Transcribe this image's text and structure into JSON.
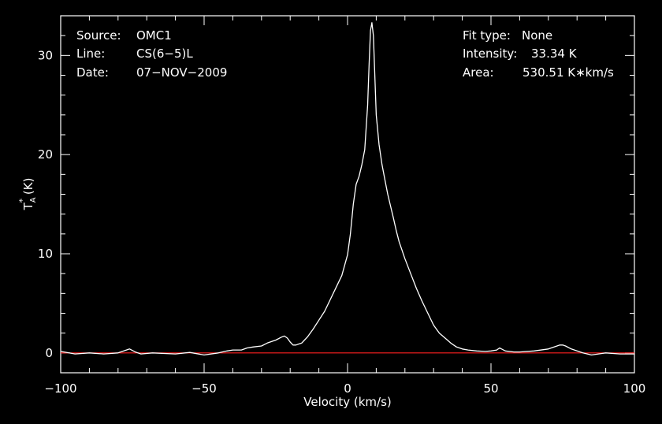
{
  "header_left": {
    "source_label": "Source:",
    "source_value": "OMC1",
    "line_label": "Line:",
    "line_value": "CS(6−5)L",
    "date_label": "Date:",
    "date_value": "07−NOV−2009"
  },
  "header_right": {
    "fit_label": "Fit type:",
    "fit_value": "None",
    "intensity_label": "Intensity:",
    "intensity_value": "33.34 K",
    "area_label": "Area:",
    "area_value": "530.51 K∗km/s"
  },
  "chart_data": {
    "type": "line",
    "xlabel": "Velocity (km/s)",
    "ylabel_main": "T",
    "ylabel_sub": "A",
    "ylabel_sup": "*",
    "ylabel_unit": " (K)",
    "xlim": [
      -100,
      100
    ],
    "ylim": [
      -2,
      34
    ],
    "x_ticks": [
      -100,
      -50,
      0,
      50,
      100
    ],
    "x_tick_labels": [
      "−100",
      "−50",
      "0",
      "50",
      "100"
    ],
    "y_ticks": [
      0,
      10,
      20,
      30
    ],
    "y_tick_labels": [
      "0",
      "10",
      "20",
      "30"
    ],
    "baseline": 0,
    "colors": {
      "spectrum": "#ffffff",
      "baseline": "#ff2020",
      "axes": "#ffffff",
      "background": "#000000"
    },
    "series": [
      {
        "x": [
          -100,
          -95,
          -90,
          -85,
          -80,
          -76,
          -74,
          -72,
          -68,
          -60,
          -55,
          -50,
          -45,
          -42,
          -40,
          -37,
          -35,
          -33,
          -30,
          -28,
          -25,
          -23,
          -22,
          -21,
          -20,
          -19,
          -18,
          -17,
          -16,
          -15,
          -14,
          -12,
          -10,
          -8,
          -6,
          -4,
          -2,
          0,
          1,
          2,
          3,
          4,
          5,
          6,
          7,
          7.5,
          8,
          8.5,
          9,
          9.5,
          10,
          11,
          12,
          13,
          14,
          15,
          16,
          17,
          18,
          20,
          22,
          24,
          26,
          28,
          30,
          32,
          34,
          36,
          38,
          40,
          42,
          45,
          48,
          50,
          52,
          53,
          55,
          58,
          60,
          65,
          70,
          72,
          74,
          75,
          76,
          78,
          80,
          82,
          85,
          90,
          95,
          100
        ],
        "y": [
          0.15,
          -0.1,
          0.0,
          -0.1,
          0.0,
          0.4,
          0.1,
          -0.1,
          0.0,
          -0.1,
          0.05,
          -0.2,
          0.0,
          0.2,
          0.3,
          0.3,
          0.5,
          0.6,
          0.7,
          1.0,
          1.3,
          1.6,
          1.7,
          1.5,
          1.1,
          0.8,
          0.8,
          0.9,
          1.0,
          1.3,
          1.6,
          2.4,
          3.3,
          4.2,
          5.4,
          6.6,
          7.8,
          9.9,
          12.0,
          15.0,
          17.0,
          17.8,
          19.0,
          20.5,
          25.0,
          29.0,
          32.5,
          33.3,
          32.0,
          28.0,
          24.0,
          21.0,
          19.0,
          17.5,
          16.0,
          14.8,
          13.6,
          12.3,
          11.2,
          9.5,
          8.0,
          6.5,
          5.2,
          4.0,
          2.8,
          2.0,
          1.5,
          1.0,
          0.6,
          0.4,
          0.3,
          0.2,
          0.15,
          0.2,
          0.3,
          0.5,
          0.2,
          0.1,
          0.1,
          0.2,
          0.4,
          0.6,
          0.8,
          0.8,
          0.7,
          0.4,
          0.2,
          0.0,
          -0.2,
          0.0,
          -0.1,
          -0.1
        ]
      }
    ]
  }
}
